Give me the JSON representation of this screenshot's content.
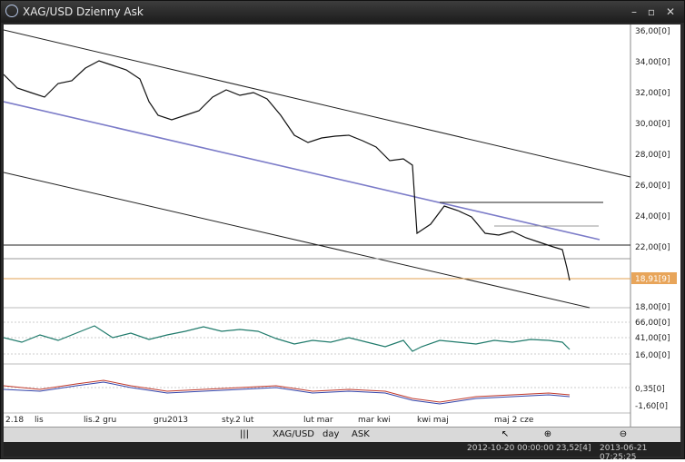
{
  "window": {
    "title": "XAG/USD Dzienny Ask"
  },
  "price_axis": [
    "36,00[0]",
    "34,00[0]",
    "32,00[0]",
    "30,00[0]",
    "28,00[0]",
    "26,00[0]",
    "24,00[0]",
    "22,00[0]",
    "18,00[0]"
  ],
  "current_price": "18,91[9]",
  "rsi_axis": [
    "66,00[0]",
    "41,00[0]",
    "16,00[0]"
  ],
  "macd_axis": [
    "0,35[0]",
    "-1,60[0]"
  ],
  "time_axis": [
    "2.18",
    "lis",
    "lis.2 gru",
    "gru2013",
    "sty.2 lut",
    "lut mar",
    "mar kwi",
    "kwi maj",
    "maj 2 cze"
  ],
  "toolbar": {
    "symbol": "XAG/USD",
    "period": "day",
    "side": "ASK"
  },
  "status": {
    "from": "2012-10-20 00:00:00",
    "cursor_value": "23,52[4]",
    "to": "2013-06-21 07:25:25"
  },
  "colors": {
    "title_bg": "#2b2b2b",
    "accent_channel": "#7b7bc8",
    "current_price": "#e8a55a"
  },
  "icons": [
    "globe-icon",
    "minimize-icon",
    "maximize-icon",
    "close-icon",
    "cursor-icon",
    "zoom-in-icon",
    "zoom-out-icon"
  ]
}
